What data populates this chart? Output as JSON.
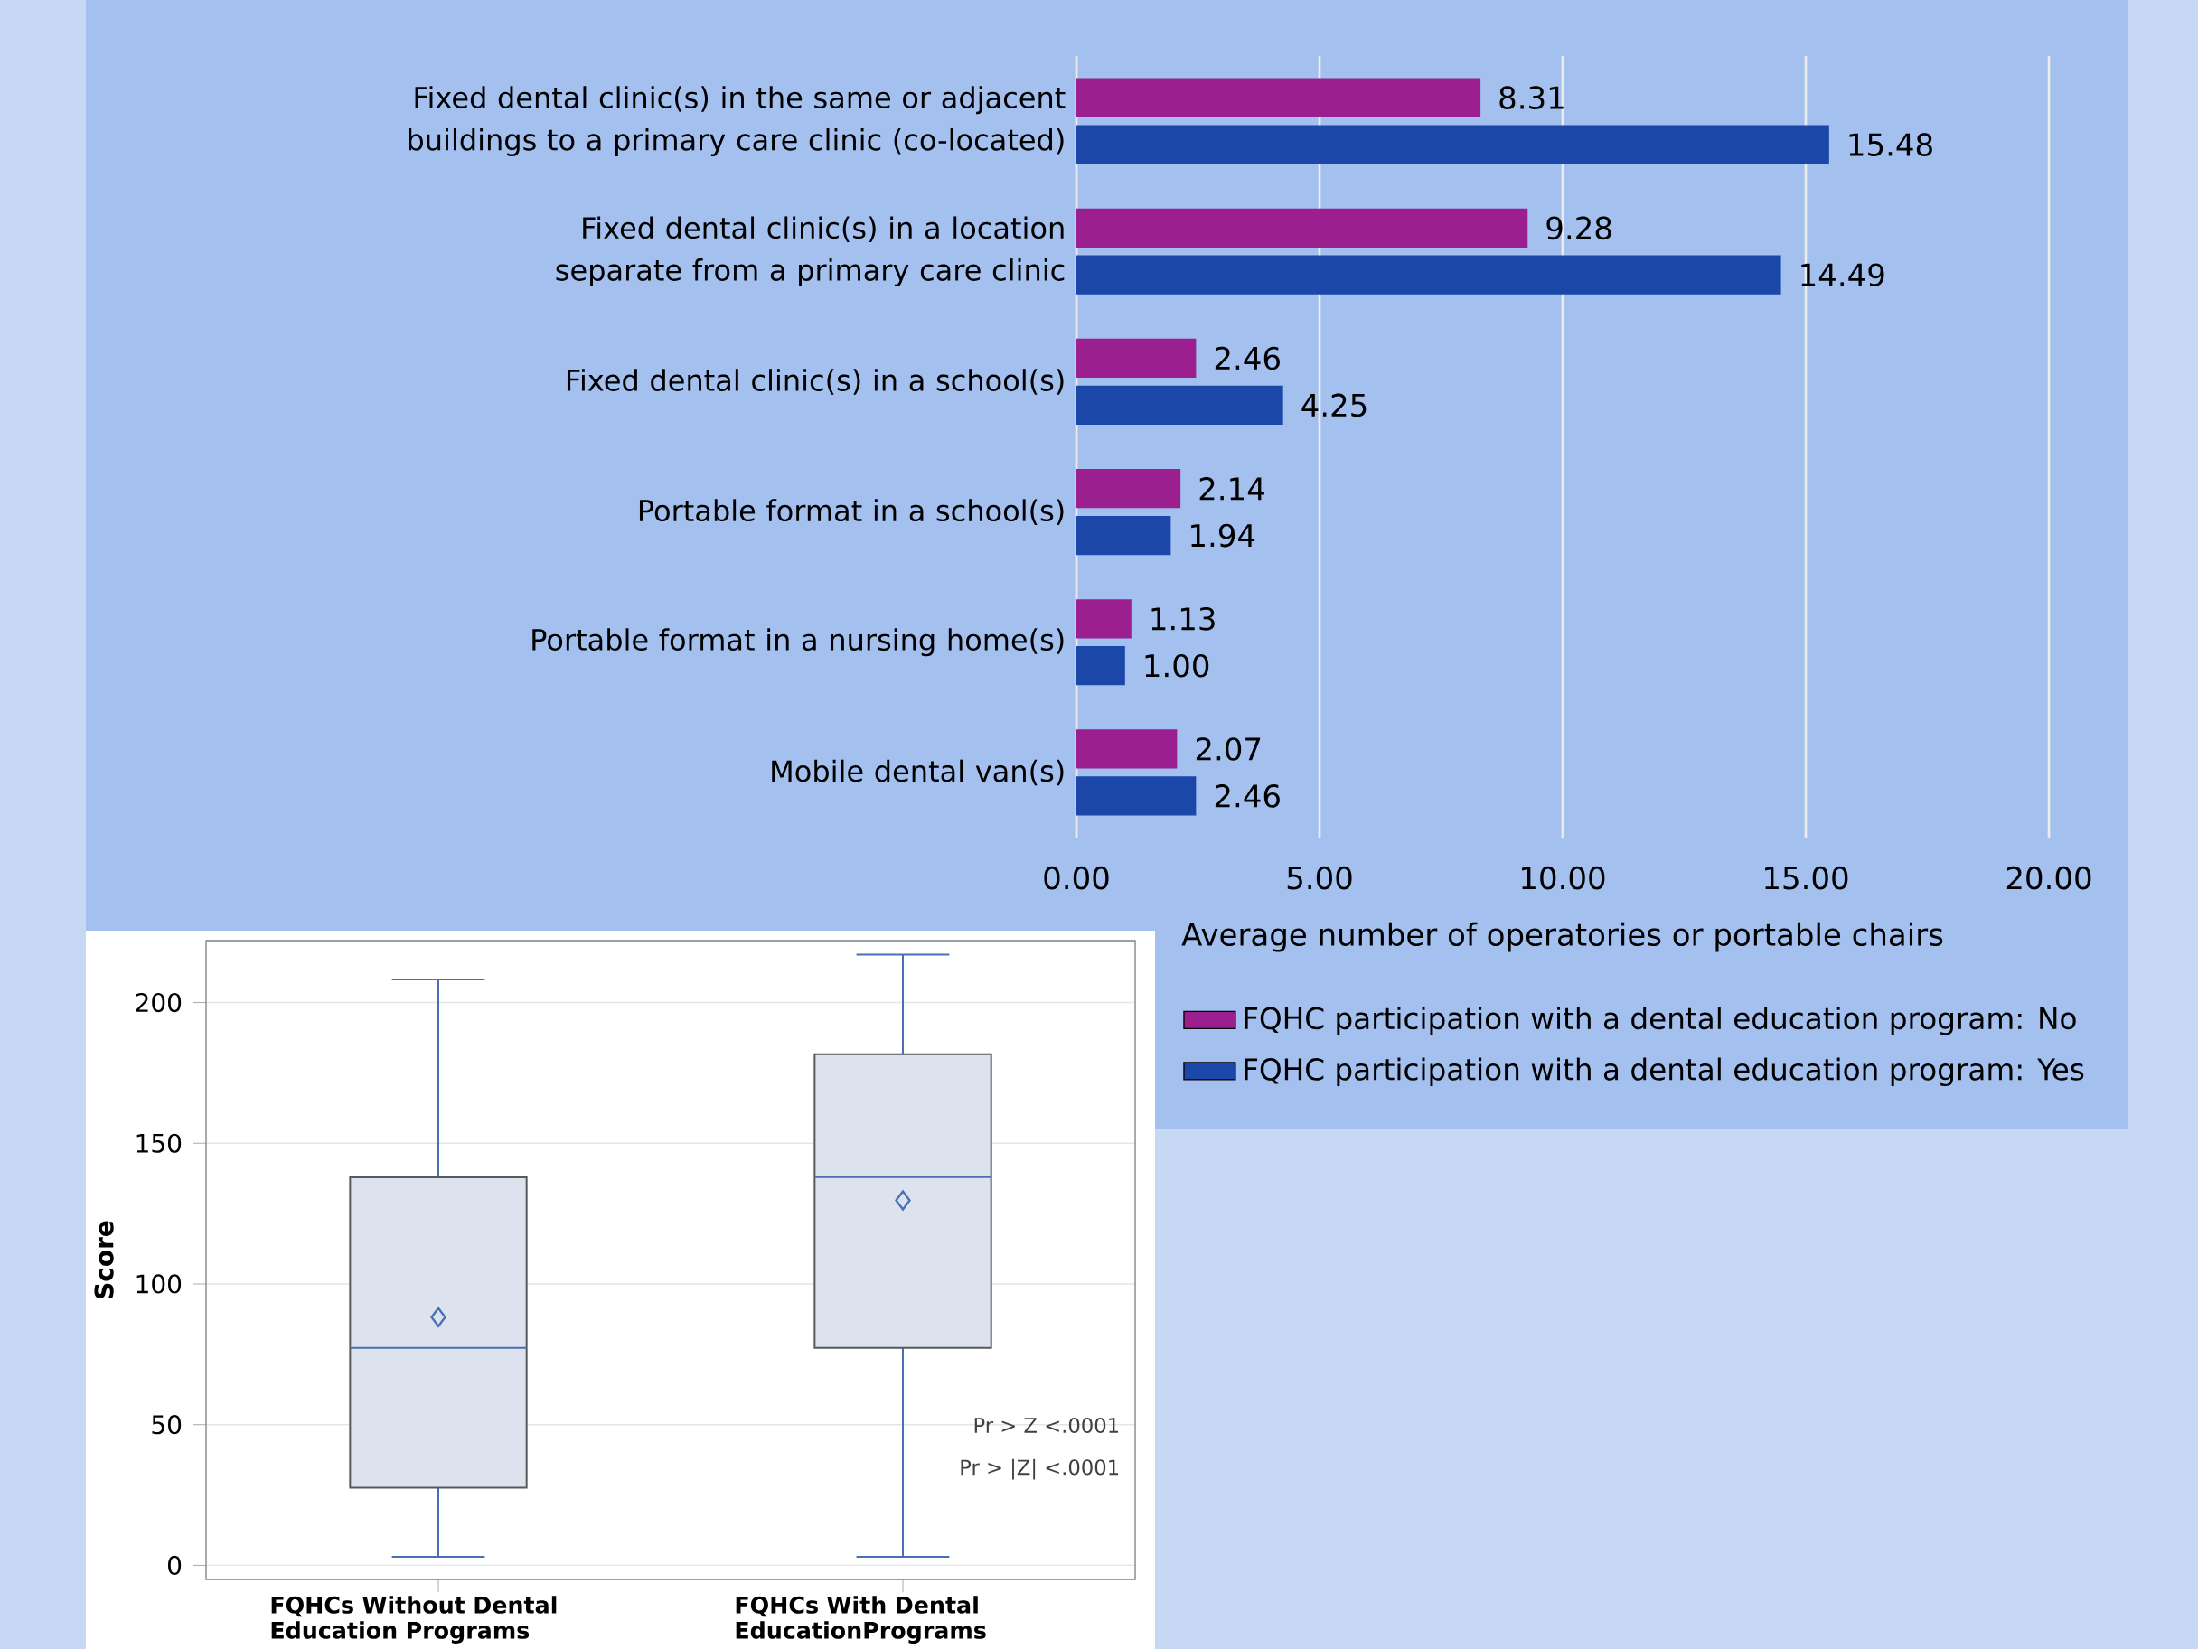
{
  "chart_data": [
    {
      "type": "bar",
      "orientation": "horizontal",
      "categories": [
        "Fixed dental clinic(s) in the same or adjacent buildings to a primary care clinic (co-located)",
        "Fixed dental clinic(s) in a location separate from a primary care clinic",
        "Fixed dental clinic(s) in a school(s)",
        "Portable format in a school(s)",
        "Portable format in a nursing home(s)",
        "Mobile dental van(s)"
      ],
      "series": [
        {
          "name": "FQHC participation with a dental education program: No",
          "color": "#9b1f8f",
          "values": [
            8.31,
            9.28,
            2.46,
            2.14,
            1.13,
            2.07
          ],
          "value_labels": [
            "8.31",
            "9.28",
            "2.46",
            "2.14",
            "1.13",
            "2.07"
          ]
        },
        {
          "name": "FQHC participation with a dental education program: Yes",
          "color": "#1a47a8",
          "values": [
            15.48,
            14.49,
            4.25,
            1.94,
            1.0,
            2.46
          ],
          "value_labels": [
            "15.48",
            "14.49",
            "4.25",
            "1.94",
            "1.00",
            "2.46"
          ]
        }
      ],
      "xlim": [
        0,
        20
      ],
      "xticks": [
        {
          "value": 0,
          "label": "0.00"
        },
        {
          "value": 5,
          "label": "5.00"
        },
        {
          "value": 10,
          "label": "10.00"
        },
        {
          "value": 15,
          "label": "15.00"
        },
        {
          "value": 20,
          "label": "20.00"
        }
      ],
      "xlabel": "Average  number  of operatories  or portable  chairs",
      "grid": "x",
      "legend": "bottom"
    },
    {
      "type": "box",
      "categories": [
        "FQHCs Without Dental Education Programs",
        "FQHCs With Dental EducationPrograms"
      ],
      "color": "#4a6fb5",
      "colors": [
        "#dde3ee",
        "#dde3ee"
      ],
      "boxes": [
        {
          "low": 3,
          "q1": 27.6,
          "median": 77.3,
          "q3": 137.9,
          "high": 208.2,
          "mean": 88.2
        },
        {
          "low": 3,
          "q1": 77.3,
          "median": 138,
          "q3": 181.6,
          "high": 217,
          "mean": 129.7
        }
      ],
      "ylim": [
        -5,
        222
      ],
      "yticks": [
        0,
        50,
        100,
        150,
        200
      ],
      "ylabel": "Score",
      "grid": "y",
      "annotations": [
        "Pr > Z    <.0001",
        "Pr > |Z|  <.0001"
      ]
    }
  ]
}
